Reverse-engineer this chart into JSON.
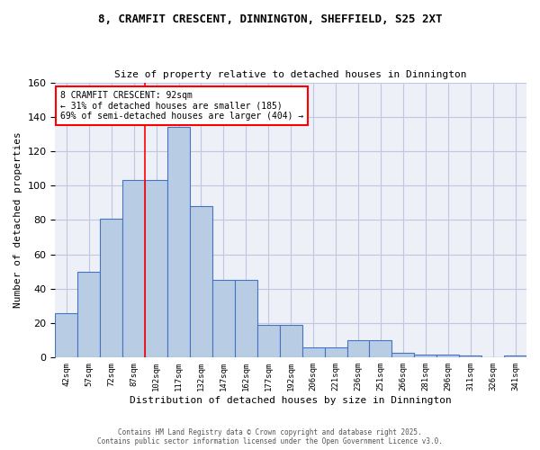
{
  "title_line1": "8, CRAMFIT CRESCENT, DINNINGTON, SHEFFIELD, S25 2XT",
  "title_line2": "Size of property relative to detached houses in Dinnington",
  "xlabel": "Distribution of detached houses by size in Dinnington",
  "ylabel": "Number of detached properties",
  "categories": [
    "42sqm",
    "57sqm",
    "72sqm",
    "87sqm",
    "102sqm",
    "117sqm",
    "132sqm",
    "147sqm",
    "162sqm",
    "177sqm",
    "192sqm",
    "206sqm",
    "221sqm",
    "236sqm",
    "251sqm",
    "266sqm",
    "281sqm",
    "296sqm",
    "311sqm",
    "326sqm",
    "341sqm"
  ],
  "values": [
    26,
    50,
    81,
    103,
    103,
    134,
    88,
    45,
    45,
    19,
    19,
    6,
    6,
    10,
    10,
    3,
    2,
    2,
    1,
    0,
    1
  ],
  "bar_color": "#b8cce4",
  "bar_edge_color": "#4472c4",
  "vline_x": 3.5,
  "vline_color": "red",
  "annotation_text": "8 CRAMFIT CRESCENT: 92sqm\n← 31% of detached houses are smaller (185)\n69% of semi-detached houses are larger (404) →",
  "annotation_box_color": "white",
  "annotation_box_edge": "red",
  "ylim": [
    0,
    160
  ],
  "yticks": [
    0,
    20,
    40,
    60,
    80,
    100,
    120,
    140,
    160
  ],
  "grid_color": "#c0c8e0",
  "bg_color": "#eef0f8",
  "footer_line1": "Contains HM Land Registry data © Crown copyright and database right 2025.",
  "footer_line2": "Contains public sector information licensed under the Open Government Licence v3.0."
}
